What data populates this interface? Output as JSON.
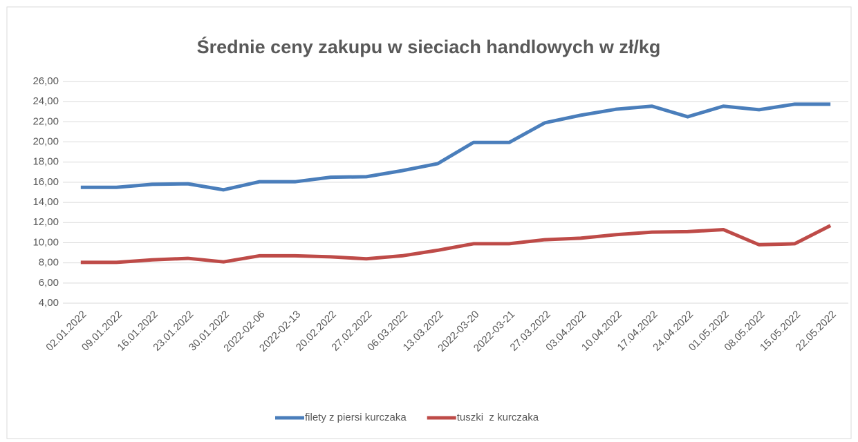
{
  "chart_data": {
    "type": "line",
    "title": "Średnie ceny zakupu w sieciach handlowych w zł/kg",
    "categories": [
      "02.01.2022",
      "09.01.2022",
      "16.01.2022",
      "23.01.2022",
      "30.01.2022",
      "2022-02-06",
      "2022-02-13",
      "20.02.2022",
      "27.02.2022",
      "06.03.2022",
      "13.03.2022",
      "2022-03-20",
      "2022-03-21",
      "27.03.2022",
      "03.04.2022",
      "10.04.2022",
      "17.04.2022",
      "24.04.2022",
      "01.05.2022",
      "08.05.2022",
      "15.05.2022",
      "22.05.2022"
    ],
    "series": [
      {
        "name": "filety z piersi kurczaka",
        "color": "#4a7ebb",
        "values": [
          15.5,
          15.5,
          15.8,
          15.85,
          15.25,
          16.05,
          16.05,
          16.5,
          16.55,
          17.15,
          17.85,
          19.95,
          19.95,
          21.9,
          22.65,
          23.25,
          23.55,
          22.5,
          23.55,
          23.2,
          23.75,
          23.75
        ]
      },
      {
        "name": "tuszki  z kurczaka",
        "color": "#be4b48",
        "values": [
          8.05,
          8.05,
          8.3,
          8.45,
          8.1,
          8.7,
          8.7,
          8.6,
          8.4,
          8.7,
          9.25,
          9.9,
          9.9,
          10.3,
          10.45,
          10.8,
          11.05,
          11.1,
          11.3,
          9.8,
          9.9,
          11.7
        ]
      }
    ],
    "ylim": [
      4,
      26
    ],
    "yticks": [
      {
        "value": 4,
        "label": "4,00"
      },
      {
        "value": 6,
        "label": "6,00"
      },
      {
        "value": 8,
        "label": "8,00"
      },
      {
        "value": 10,
        "label": "10,00"
      },
      {
        "value": 12,
        "label": "12,00"
      },
      {
        "value": 14,
        "label": "14,00"
      },
      {
        "value": 16,
        "label": "16,00"
      },
      {
        "value": 18,
        "label": "18,00"
      },
      {
        "value": 20,
        "label": "20,00"
      },
      {
        "value": 22,
        "label": "22,00"
      },
      {
        "value": 24,
        "label": "24,00"
      },
      {
        "value": 26,
        "label": "26,00"
      }
    ],
    "grid": true,
    "legend": "bottom"
  }
}
